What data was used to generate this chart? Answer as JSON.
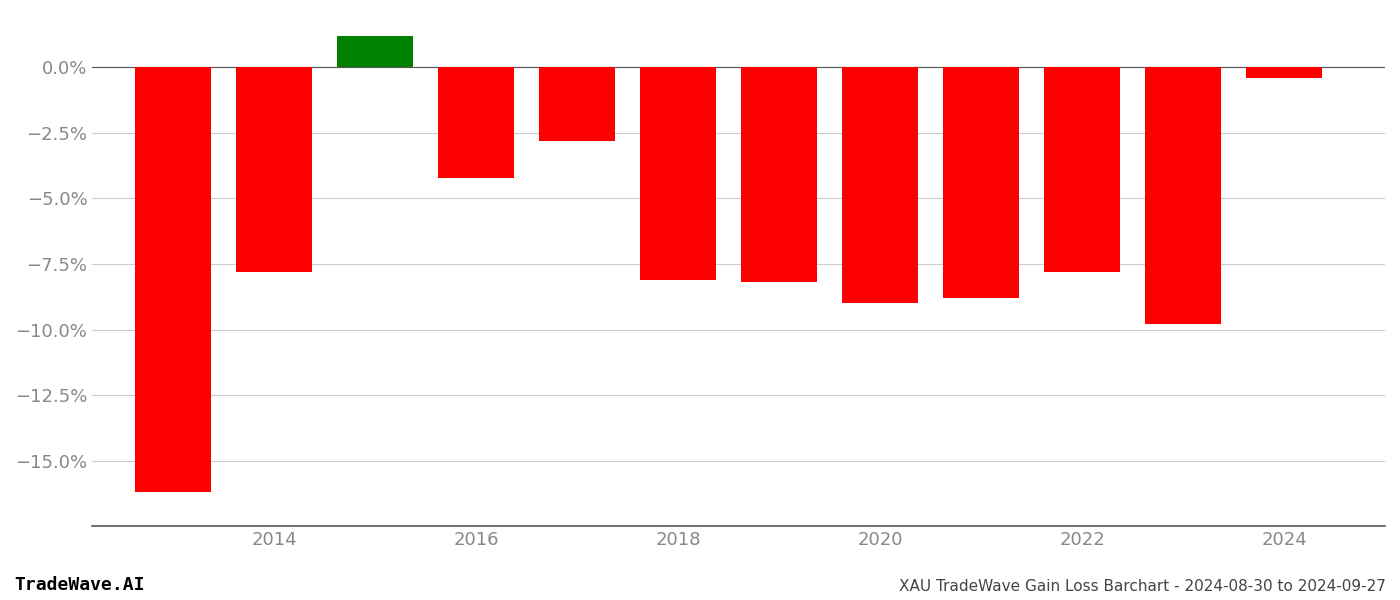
{
  "years": [
    2013,
    2014,
    2015,
    2016,
    2017,
    2018,
    2019,
    2020,
    2021,
    2022,
    2023,
    2024
  ],
  "values": [
    -16.2,
    -7.8,
    1.2,
    -4.2,
    -2.8,
    -8.1,
    -8.2,
    -9.0,
    -8.8,
    -7.8,
    -9.8,
    -0.4
  ],
  "bar_colors": [
    "#ff0000",
    "#ff0000",
    "#008000",
    "#ff0000",
    "#ff0000",
    "#ff0000",
    "#ff0000",
    "#ff0000",
    "#ff0000",
    "#ff0000",
    "#ff0000",
    "#ff0000"
  ],
  "title": "XAU TradeWave Gain Loss Barchart - 2024-08-30 to 2024-09-27",
  "watermark": "TradeWave.AI",
  "ylim": [
    -17.5,
    2.0
  ],
  "yticks": [
    0.0,
    -2.5,
    -5.0,
    -7.5,
    -10.0,
    -12.5,
    -15.0
  ],
  "xtick_labels": [
    "2014",
    "2016",
    "2018",
    "2020",
    "2022",
    "2024"
  ],
  "xtick_positions": [
    2014,
    2016,
    2018,
    2020,
    2022,
    2024
  ],
  "background_color": "#ffffff",
  "grid_color": "#cccccc",
  "tick_label_color": "#888888",
  "bar_width": 0.75,
  "xlim": [
    2012.2,
    2025.0
  ]
}
